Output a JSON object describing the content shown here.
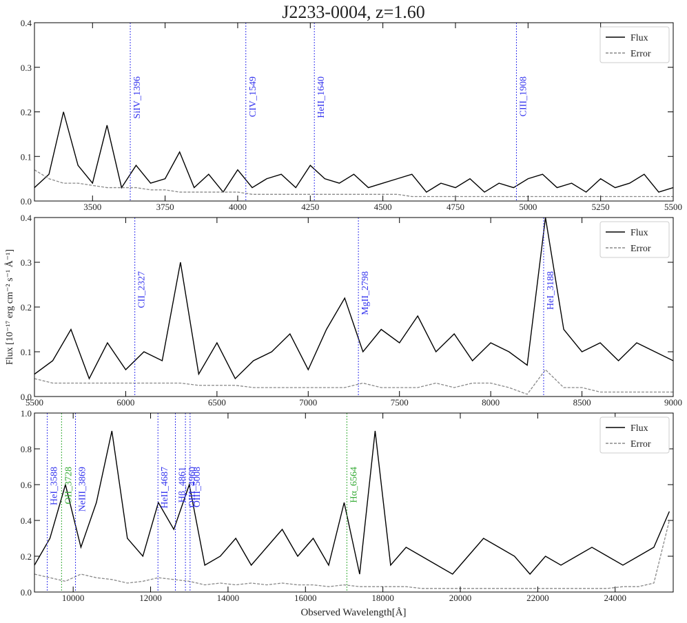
{
  "chart_data": [
    {
      "type": "line",
      "title": "J2233-0004, z=1.60",
      "x": [
        3300,
        3350,
        3400,
        3450,
        3500,
        3550,
        3600,
        3650,
        3700,
        3750,
        3800,
        3850,
        3900,
        3950,
        4000,
        4050,
        4100,
        4150,
        4200,
        4250,
        4300,
        4350,
        4400,
        4450,
        4500,
        4550,
        4600,
        4650,
        4700,
        4750,
        4800,
        4850,
        4900,
        4950,
        5000,
        5050,
        5100,
        5150,
        5200,
        5250,
        5300,
        5350,
        5400,
        5450,
        5500
      ],
      "series": [
        {
          "name": "Flux",
          "color": "#000000",
          "style": "solid",
          "values": [
            0.03,
            0.06,
            0.2,
            0.08,
            0.04,
            0.17,
            0.03,
            0.08,
            0.04,
            0.05,
            0.11,
            0.03,
            0.06,
            0.02,
            0.07,
            0.03,
            0.05,
            0.06,
            0.03,
            0.08,
            0.05,
            0.04,
            0.06,
            0.03,
            0.04,
            0.05,
            0.06,
            0.02,
            0.04,
            0.03,
            0.05,
            0.02,
            0.04,
            0.03,
            0.05,
            0.06,
            0.03,
            0.04,
            0.02,
            0.05,
            0.03,
            0.04,
            0.06,
            0.02,
            0.03
          ]
        },
        {
          "name": "Error",
          "color": "#888888",
          "style": "dashed",
          "values": [
            0.07,
            0.05,
            0.04,
            0.04,
            0.035,
            0.03,
            0.03,
            0.03,
            0.025,
            0.025,
            0.02,
            0.02,
            0.02,
            0.02,
            0.02,
            0.015,
            0.015,
            0.015,
            0.015,
            0.015,
            0.015,
            0.015,
            0.015,
            0.015,
            0.015,
            0.015,
            0.01,
            0.01,
            0.01,
            0.01,
            0.01,
            0.01,
            0.01,
            0.01,
            0.01,
            0.01,
            0.01,
            0.01,
            0.01,
            0.01,
            0.01,
            0.01,
            0.01,
            0.01,
            0.01
          ]
        }
      ],
      "lines": [
        {
          "text": "SiIV_1396",
          "x": 3630,
          "color": "#3333ee"
        },
        {
          "text": "CIV_1549",
          "x": 4028,
          "color": "#3333ee"
        },
        {
          "text": "HeII_1640",
          "x": 4264,
          "color": "#3333ee"
        },
        {
          "text": "CIII_1908",
          "x": 4960,
          "color": "#3333ee"
        }
      ],
      "xlim": [
        3300,
        5500
      ],
      "xticks": [
        3500,
        3750,
        4000,
        4250,
        4500,
        4750,
        5000,
        5250,
        5500
      ],
      "ylim": [
        0,
        0.4
      ],
      "yticks": [
        {
          "value": 0,
          "label": "0.0"
        },
        0.1,
        0.2,
        0.3,
        0.4
      ],
      "legend": "upper right",
      "grid": false
    },
    {
      "type": "line",
      "y_label": "Flux [10⁻¹⁷ erg cm⁻² s⁻¹ Å⁻¹]",
      "x": [
        5500,
        5600,
        5700,
        5800,
        5900,
        6000,
        6100,
        6200,
        6300,
        6400,
        6500,
        6600,
        6700,
        6800,
        6900,
        7000,
        7100,
        7200,
        7300,
        7400,
        7500,
        7600,
        7700,
        7800,
        7900,
        8000,
        8100,
        8200,
        8300,
        8400,
        8500,
        8600,
        8700,
        8800,
        8900,
        9000
      ],
      "series": [
        {
          "name": "Flux",
          "color": "#000000",
          "style": "solid",
          "values": [
            0.05,
            0.08,
            0.15,
            0.04,
            0.12,
            0.06,
            0.1,
            0.08,
            0.3,
            0.05,
            0.12,
            0.04,
            0.08,
            0.1,
            0.14,
            0.06,
            0.15,
            0.22,
            0.1,
            0.15,
            0.12,
            0.18,
            0.1,
            0.14,
            0.08,
            0.12,
            0.1,
            0.07,
            0.4,
            0.15,
            0.1,
            0.12,
            0.08,
            0.12,
            0.1,
            0.08
          ]
        },
        {
          "name": "Error",
          "color": "#888888",
          "style": "dashed",
          "values": [
            0.04,
            0.03,
            0.03,
            0.03,
            0.03,
            0.03,
            0.03,
            0.03,
            0.03,
            0.025,
            0.025,
            0.025,
            0.02,
            0.02,
            0.02,
            0.02,
            0.02,
            0.02,
            0.03,
            0.02,
            0.02,
            0.02,
            0.03,
            0.02,
            0.03,
            0.03,
            0.02,
            0.005,
            0.06,
            0.02,
            0.02,
            0.01,
            0.01,
            0.01,
            0.01,
            0.01
          ]
        }
      ],
      "lines": [
        {
          "text": "CII_2327",
          "x": 6050,
          "color": "#3333ee"
        },
        {
          "text": "MgII_2798",
          "x": 7275,
          "color": "#3333ee"
        },
        {
          "text": "HeI_3188",
          "x": 8290,
          "color": "#3333ee"
        }
      ],
      "xlim": [
        5500,
        9000
      ],
      "xticks": [
        5500,
        6000,
        6500,
        7000,
        7500,
        8000,
        8500,
        9000
      ],
      "ylim": [
        0,
        0.4
      ],
      "yticks": [
        {
          "value": 0,
          "label": "0.0"
        },
        0.1,
        0.2,
        0.3,
        0.4
      ],
      "legend": "upper right",
      "grid": false
    },
    {
      "type": "line",
      "x_label": "Observed Wavelength[Å]",
      "x": [
        9000,
        9400,
        9800,
        10200,
        10600,
        11000,
        11400,
        11800,
        12200,
        12600,
        13000,
        13400,
        13800,
        14200,
        14600,
        15000,
        15400,
        15800,
        16200,
        16600,
        17000,
        17400,
        17800,
        18200,
        18600,
        19000,
        19400,
        19800,
        20200,
        20600,
        21000,
        21400,
        21800,
        22200,
        22600,
        23000,
        23400,
        23800,
        24200,
        24600,
        25000,
        25400
      ],
      "series": [
        {
          "name": "Flux",
          "color": "#000000",
          "style": "solid",
          "values": [
            0.15,
            0.3,
            0.6,
            0.25,
            0.5,
            0.9,
            0.3,
            0.2,
            0.5,
            0.35,
            0.6,
            0.15,
            0.2,
            0.3,
            0.15,
            0.25,
            0.35,
            0.2,
            0.3,
            0.15,
            0.5,
            0.1,
            0.9,
            0.15,
            0.25,
            0.2,
            0.15,
            0.1,
            0.2,
            0.3,
            0.25,
            0.2,
            0.1,
            0.2,
            0.15,
            0.2,
            0.25,
            0.2,
            0.15,
            0.2,
            0.25,
            0.45
          ]
        },
        {
          "name": "Error",
          "color": "#888888",
          "style": "dashed",
          "values": [
            0.1,
            0.08,
            0.06,
            0.1,
            0.08,
            0.07,
            0.05,
            0.06,
            0.08,
            0.07,
            0.06,
            0.04,
            0.05,
            0.04,
            0.05,
            0.04,
            0.05,
            0.04,
            0.04,
            0.03,
            0.04,
            0.03,
            0.03,
            0.03,
            0.03,
            0.02,
            0.02,
            0.02,
            0.02,
            0.02,
            0.02,
            0.02,
            0.02,
            0.02,
            0.02,
            0.02,
            0.02,
            0.02,
            0.03,
            0.03,
            0.05,
            0.4
          ]
        }
      ],
      "lines": [
        {
          "text": "HeI_3588",
          "x": 9330,
          "color": "#3333ee"
        },
        {
          "text": "OII_3728",
          "x": 9700,
          "color": "#33aa33"
        },
        {
          "text": "NeIII_3869",
          "x": 10060,
          "color": "#3333ee"
        },
        {
          "text": "HeII_4687",
          "x": 12190,
          "color": "#3333ee"
        },
        {
          "text": "Hβ_4861",
          "x": 12640,
          "color": "#3333ee"
        },
        {
          "text": "OIII_4960",
          "x": 12900,
          "color": "#3333ee"
        },
        {
          "text": "OIII_5008",
          "x": 13020,
          "color": "#3333ee"
        },
        {
          "text": "Hα_6564",
          "x": 17070,
          "color": "#33aa33"
        }
      ],
      "xlim": [
        9000,
        25500
      ],
      "xticks": [
        10000,
        12000,
        14000,
        16000,
        18000,
        20000,
        22000,
        24000
      ],
      "ylim": [
        0,
        1
      ],
      "yticks": [
        {
          "value": 0,
          "label": "0.0"
        },
        0.2,
        0.4,
        0.6,
        0.8,
        {
          "value": 1,
          "label": "1.0"
        }
      ],
      "legend": "upper right",
      "grid": false
    }
  ]
}
